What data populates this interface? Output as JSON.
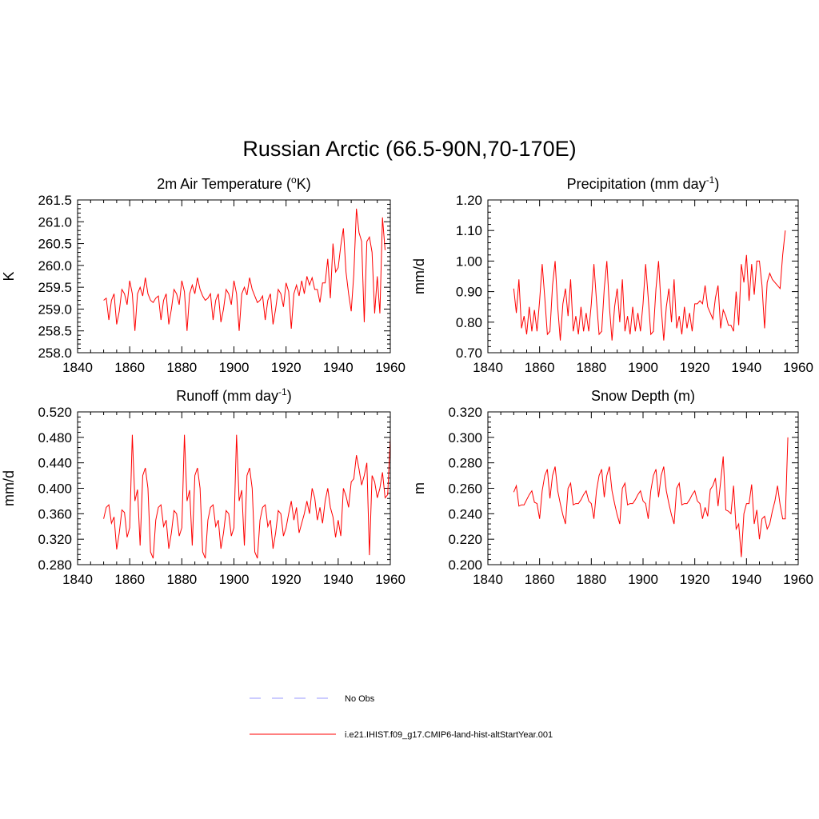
{
  "figure": {
    "title": "Russian Arctic (66.5-90N,70-170E)"
  },
  "legend": {
    "items": [
      {
        "label": "No Obs",
        "color": "#9999ff",
        "style": "dashed"
      },
      {
        "label": "i.e21.IHIST.f09_g17.CMIP6-land-hist-altStartYear.001",
        "color": "#ff0000",
        "style": "solid"
      }
    ]
  },
  "chart_data": [
    {
      "type": "line",
      "title": "2m Air Temperature (°K)",
      "title_parts": {
        "pre": "2m Air Temperature (",
        "sup": "o",
        "post": "K)"
      },
      "xlabel": "",
      "ylabel": "K",
      "xlim": [
        1840,
        1960
      ],
      "ylim": [
        258.0,
        261.5
      ],
      "xticks": [
        1840,
        1860,
        1880,
        1900,
        1920,
        1940,
        1960
      ],
      "xtick_labels": [
        "1840",
        "1860",
        "1880",
        "1900",
        "1920",
        "1940",
        "1960"
      ],
      "yticks": [
        258.0,
        258.5,
        259.0,
        259.5,
        260.0,
        260.5,
        261.0,
        261.5
      ],
      "ytick_labels": [
        "258.0",
        "258.5",
        "259.0",
        "259.5",
        "260.0",
        "260.5",
        "261.0",
        "261.5"
      ],
      "x_start": 1850,
      "series": [
        {
          "name": "i.e21.IHIST.f09_g17.CMIP6-land-hist-altStartYear.001",
          "color": "#ff0000",
          "values": [
            259.2,
            259.25,
            258.75,
            259.2,
            259.35,
            258.65,
            258.95,
            259.45,
            259.35,
            259.1,
            259.65,
            259.35,
            258.5,
            259.35,
            259.5,
            259.3,
            259.72,
            259.35,
            259.2,
            259.15,
            259.25,
            259.3,
            258.75,
            259.2,
            259.35,
            258.65,
            259.0,
            259.45,
            259.35,
            259.1,
            259.65,
            259.4,
            258.5,
            259.35,
            259.55,
            259.35,
            259.72,
            259.45,
            259.3,
            259.2,
            259.25,
            259.35,
            258.75,
            259.2,
            259.35,
            258.7,
            259.0,
            259.45,
            259.35,
            259.1,
            259.65,
            259.35,
            258.5,
            259.35,
            259.5,
            259.32,
            259.72,
            259.45,
            259.3,
            259.15,
            259.2,
            259.3,
            258.75,
            259.2,
            259.35,
            258.65,
            259.0,
            259.45,
            259.35,
            259.05,
            259.6,
            259.4,
            258.55,
            259.35,
            259.55,
            259.3,
            259.65,
            259.35,
            259.75,
            259.55,
            259.72,
            259.45,
            259.45,
            259.15,
            259.6,
            259.6,
            260.15,
            259.25,
            260.5,
            259.85,
            259.95,
            260.45,
            260.85,
            259.85,
            259.35,
            258.95,
            259.8,
            261.3,
            260.75,
            260.55,
            258.7,
            260.55,
            260.65,
            260.3,
            258.9,
            259.75,
            258.9,
            261.1,
            260.35
          ]
        }
      ]
    },
    {
      "type": "line",
      "title": "Precipitation (mm day-1)",
      "title_parts": {
        "pre": "Precipitation (mm day",
        "sup": "-1",
        "post": ")"
      },
      "xlabel": "",
      "ylabel": "mm/d",
      "xlim": [
        1840,
        1960
      ],
      "ylim": [
        0.7,
        1.2
      ],
      "xticks": [
        1840,
        1860,
        1880,
        1900,
        1920,
        1940,
        1960
      ],
      "xtick_labels": [
        "1840",
        "1860",
        "1880",
        "1900",
        "1920",
        "1940",
        "1960"
      ],
      "yticks": [
        0.7,
        0.8,
        0.9,
        1.0,
        1.1,
        1.2
      ],
      "ytick_labels": [
        "0.70",
        "0.80",
        "0.90",
        "1.00",
        "1.10",
        "1.20"
      ],
      "x_start": 1850,
      "series": [
        {
          "name": "i.e21.IHIST.f09_g17.CMIP6-land-hist-altStartYear.001",
          "color": "#ff0000",
          "values": [
            0.91,
            0.83,
            0.94,
            0.78,
            0.82,
            0.76,
            0.85,
            0.77,
            0.84,
            0.77,
            0.87,
            0.99,
            0.88,
            0.76,
            0.77,
            0.92,
            1.0,
            0.85,
            0.74,
            0.86,
            0.91,
            0.82,
            0.94,
            0.77,
            0.82,
            0.76,
            0.85,
            0.77,
            0.83,
            0.77,
            0.86,
            0.99,
            0.87,
            0.76,
            0.77,
            0.91,
            1.0,
            0.85,
            0.74,
            0.85,
            0.91,
            0.8,
            0.94,
            0.77,
            0.82,
            0.76,
            0.85,
            0.77,
            0.83,
            0.77,
            0.86,
            0.99,
            0.88,
            0.76,
            0.77,
            0.91,
            1.0,
            0.85,
            0.74,
            0.85,
            0.91,
            0.8,
            0.94,
            0.78,
            0.82,
            0.76,
            0.85,
            0.78,
            0.83,
            0.77,
            0.86,
            0.86,
            0.87,
            0.86,
            0.92,
            0.85,
            0.83,
            0.81,
            0.88,
            0.92,
            0.78,
            0.84,
            0.82,
            0.79,
            0.79,
            0.77,
            0.9,
            0.79,
            0.99,
            0.93,
            1.02,
            0.87,
            0.99,
            0.89,
            1.0,
            1.0,
            0.92,
            0.78,
            0.93,
            0.96,
            0.94,
            0.93,
            0.92,
            0.91,
            1.02,
            1.1
          ]
        }
      ]
    },
    {
      "type": "line",
      "title": "Runoff (mm day-1)",
      "title_parts": {
        "pre": "Runoff (mm day",
        "sup": "-1",
        "post": ")"
      },
      "xlabel": "",
      "ylabel": "mm/d",
      "xlim": [
        1840,
        1960
      ],
      "ylim": [
        0.28,
        0.52
      ],
      "xticks": [
        1840,
        1860,
        1880,
        1900,
        1920,
        1940,
        1960
      ],
      "xtick_labels": [
        "1840",
        "1860",
        "1880",
        "1900",
        "1920",
        "1940",
        "1960"
      ],
      "yticks": [
        0.28,
        0.32,
        0.36,
        0.4,
        0.44,
        0.48,
        0.52
      ],
      "ytick_labels": [
        "0.280",
        "0.320",
        "0.360",
        "0.400",
        "0.440",
        "0.480",
        "0.520"
      ],
      "x_start": 1850,
      "series": [
        {
          "name": "i.e21.IHIST.f09_g17.CMIP6-land-hist-altStartYear.001",
          "color": "#ff0000",
          "values": [
            0.352,
            0.37,
            0.374,
            0.345,
            0.355,
            0.304,
            0.33,
            0.366,
            0.362,
            0.323,
            0.338,
            0.484,
            0.38,
            0.398,
            0.31,
            0.42,
            0.432,
            0.4,
            0.3,
            0.29,
            0.35,
            0.37,
            0.374,
            0.34,
            0.35,
            0.305,
            0.33,
            0.365,
            0.36,
            0.325,
            0.338,
            0.484,
            0.38,
            0.397,
            0.31,
            0.42,
            0.432,
            0.4,
            0.3,
            0.29,
            0.35,
            0.37,
            0.374,
            0.34,
            0.35,
            0.305,
            0.33,
            0.365,
            0.36,
            0.325,
            0.338,
            0.484,
            0.38,
            0.397,
            0.31,
            0.42,
            0.432,
            0.4,
            0.3,
            0.29,
            0.35,
            0.37,
            0.374,
            0.34,
            0.35,
            0.305,
            0.33,
            0.365,
            0.36,
            0.325,
            0.338,
            0.36,
            0.38,
            0.35,
            0.37,
            0.33,
            0.345,
            0.36,
            0.38,
            0.36,
            0.4,
            0.385,
            0.35,
            0.37,
            0.345,
            0.38,
            0.4,
            0.37,
            0.355,
            0.323,
            0.35,
            0.325,
            0.4,
            0.388,
            0.37,
            0.41,
            0.415,
            0.452,
            0.43,
            0.405,
            0.42,
            0.44,
            0.295,
            0.42,
            0.41,
            0.385,
            0.4,
            0.425,
            0.385,
            0.39,
            0.48
          ]
        }
      ]
    },
    {
      "type": "line",
      "title": "Snow Depth (m)",
      "xlabel": "",
      "ylabel": "m",
      "xlim": [
        1840,
        1960
      ],
      "ylim": [
        0.2,
        0.32
      ],
      "xticks": [
        1840,
        1860,
        1880,
        1900,
        1920,
        1940,
        1960
      ],
      "xtick_labels": [
        "1840",
        "1860",
        "1880",
        "1900",
        "1920",
        "1940",
        "1960"
      ],
      "yticks": [
        0.2,
        0.22,
        0.24,
        0.26,
        0.28,
        0.3,
        0.32
      ],
      "ytick_labels": [
        "0.200",
        "0.220",
        "0.240",
        "0.260",
        "0.280",
        "0.300",
        "0.320"
      ],
      "x_start": 1850,
      "series": [
        {
          "name": "i.e21.IHIST.f09_g17.CMIP6-land-hist-altStartYear.001",
          "color": "#ff0000",
          "values": [
            0.257,
            0.262,
            0.246,
            0.247,
            0.247,
            0.251,
            0.255,
            0.258,
            0.249,
            0.248,
            0.236,
            0.258,
            0.27,
            0.275,
            0.252,
            0.27,
            0.277,
            0.258,
            0.248,
            0.239,
            0.232,
            0.26,
            0.264,
            0.247,
            0.248,
            0.248,
            0.251,
            0.255,
            0.258,
            0.25,
            0.248,
            0.236,
            0.258,
            0.27,
            0.275,
            0.253,
            0.27,
            0.277,
            0.258,
            0.248,
            0.239,
            0.232,
            0.26,
            0.264,
            0.247,
            0.248,
            0.248,
            0.251,
            0.255,
            0.258,
            0.25,
            0.248,
            0.236,
            0.258,
            0.27,
            0.275,
            0.253,
            0.27,
            0.277,
            0.258,
            0.248,
            0.239,
            0.232,
            0.26,
            0.264,
            0.247,
            0.248,
            0.248,
            0.251,
            0.255,
            0.258,
            0.25,
            0.248,
            0.236,
            0.245,
            0.238,
            0.259,
            0.262,
            0.268,
            0.246,
            0.265,
            0.285,
            0.243,
            0.242,
            0.24,
            0.262,
            0.228,
            0.232,
            0.206,
            0.24,
            0.248,
            0.248,
            0.263,
            0.232,
            0.243,
            0.22,
            0.236,
            0.238,
            0.228,
            0.232,
            0.242,
            0.25,
            0.262,
            0.247,
            0.236,
            0.236,
            0.3
          ]
        }
      ]
    }
  ]
}
